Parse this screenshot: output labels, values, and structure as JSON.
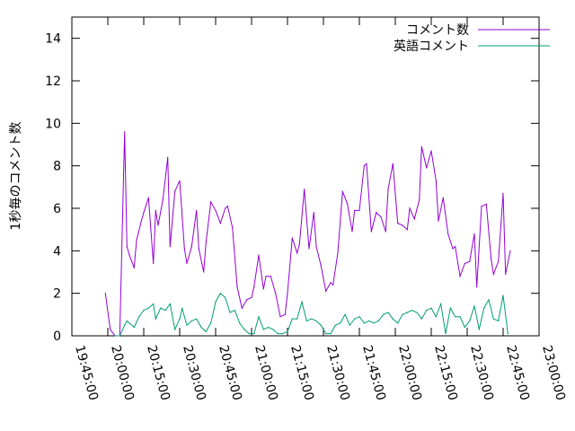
{
  "chart_data": {
    "type": "line",
    "ylabel": "1秒毎のコメント数",
    "xlabel": "",
    "ylim": [
      0,
      15
    ],
    "xlim": [
      "19:45:00",
      "23:00:00"
    ],
    "yticks": [
      "0",
      "2",
      "4",
      "6",
      "8",
      "10",
      "12",
      "14"
    ],
    "xticks": [
      "19:45:00",
      "20:00:00",
      "20:15:00",
      "20:30:00",
      "20:45:00",
      "21:00:00",
      "21:15:00",
      "21:30:00",
      "21:45:00",
      "22:00:00",
      "22:15:00",
      "22:30:00",
      "22:45:00",
      "23:00:00"
    ],
    "legend_position": "top-right",
    "grid": false,
    "series": [
      {
        "name": "コメント数",
        "color": "#9400d3",
        "x": [
          "19:59:00",
          "20:01:00",
          "20:03:00",
          "20:05:00",
          "20:07:00",
          "20:08:00",
          "20:09:00",
          "20:11:00",
          "20:12:00",
          "20:14:00",
          "20:15:00",
          "20:17:00",
          "20:19:00",
          "20:20:00",
          "20:21:00",
          "20:23:00",
          "20:25:00",
          "20:26:00",
          "20:28:00",
          "20:30:00",
          "20:32:00",
          "20:33:00",
          "20:35:00",
          "20:37:00",
          "20:38:00",
          "20:40:00",
          "20:41:00",
          "20:43:00",
          "20:45:00",
          "20:47:00",
          "20:49:00",
          "20:50:00",
          "20:52:00",
          "20:54:00",
          "20:56:00",
          "20:58:00",
          "21:00:00",
          "21:01:00",
          "21:03:00",
          "21:05:00",
          "21:06:00",
          "21:08:00",
          "21:10:00",
          "21:12:00",
          "21:14:00",
          "21:15:00",
          "21:17:00",
          "21:19:00",
          "21:20:00",
          "21:22:00",
          "21:24:00",
          "21:26:00",
          "21:27:00",
          "21:29:00",
          "21:31:00",
          "21:33:00",
          "21:34:00",
          "21:36:00",
          "21:38:00",
          "21:40:00",
          "21:42:00",
          "21:43:00",
          "21:45:00",
          "21:47:00",
          "21:48:00",
          "21:50:00",
          "21:52:00",
          "21:54:00",
          "21:56:00",
          "21:57:00",
          "21:59:00",
          "22:01:00",
          "22:03:00",
          "22:05:00",
          "22:06:00",
          "22:08:00",
          "22:10:00",
          "22:11:00",
          "22:13:00",
          "22:15:00",
          "22:17:00",
          "22:18:00",
          "22:20:00",
          "22:22:00",
          "22:24:00",
          "22:25:00",
          "22:27:00",
          "22:29:00",
          "22:31:00",
          "22:33:00",
          "22:34:00",
          "22:36:00",
          "22:38:00",
          "22:40:00",
          "22:41:00",
          "22:43:00",
          "22:45:00",
          "22:46:00",
          "22:48:00"
        ],
        "values": [
          2.0,
          0.3,
          0.0,
          0.0,
          9.6,
          4.2,
          3.8,
          3.2,
          4.5,
          5.4,
          5.8,
          6.5,
          3.4,
          5.9,
          5.2,
          6.4,
          8.4,
          4.2,
          6.8,
          7.3,
          4.1,
          3.4,
          4.2,
          5.9,
          4.1,
          3.0,
          4.4,
          6.3,
          5.9,
          5.3,
          6.0,
          6.1,
          5.1,
          2.3,
          1.3,
          1.7,
          1.8,
          2.3,
          3.8,
          2.2,
          2.8,
          2.8,
          2.0,
          0.9,
          1.0,
          2.0,
          4.6,
          3.9,
          4.3,
          6.9,
          4.1,
          5.8,
          4.2,
          3.3,
          2.1,
          2.5,
          2.4,
          3.9,
          6.8,
          6.2,
          4.9,
          5.9,
          5.9,
          8.0,
          8.1,
          4.9,
          5.8,
          5.6,
          4.9,
          6.9,
          8.1,
          5.3,
          5.2,
          5.0,
          6.0,
          5.5,
          6.4,
          8.9,
          7.9,
          8.7,
          7.3,
          5.4,
          6.5,
          4.8,
          4.1,
          4.2,
          2.8,
          3.4,
          3.5,
          4.8,
          2.3,
          6.1,
          6.2,
          3.6,
          2.9,
          3.5,
          6.7,
          2.9,
          4.0
        ]
      },
      {
        "name": "英語コメント",
        "color": "#009e73",
        "x": [
          "20:03:00",
          "20:05:00",
          "20:07:00",
          "20:08:00",
          "20:09:00",
          "20:11:00",
          "20:13:00",
          "20:15:00",
          "20:17:00",
          "20:19:00",
          "20:20:00",
          "20:22:00",
          "20:24:00",
          "20:26:00",
          "20:28:00",
          "20:30:00",
          "20:31:00",
          "20:33:00",
          "20:35:00",
          "20:37:00",
          "20:39:00",
          "20:41:00",
          "20:43:00",
          "20:45:00",
          "20:47:00",
          "20:49:00",
          "20:51:00",
          "20:53:00",
          "20:55:00",
          "20:57:00",
          "20:59:00",
          "21:01:00",
          "21:03:00",
          "21:05:00",
          "21:07:00",
          "21:09:00",
          "21:11:00",
          "21:13:00",
          "21:15:00",
          "21:17:00",
          "21:19:00",
          "21:21:00",
          "21:23:00",
          "21:25:00",
          "21:27:00",
          "21:29:00",
          "21:31:00",
          "21:33:00",
          "21:35:00",
          "21:37:00",
          "21:39:00",
          "21:41:00",
          "21:43:00",
          "21:45:00",
          "21:47:00",
          "21:49:00",
          "21:51:00",
          "21:53:00",
          "21:55:00",
          "21:57:00",
          "21:59:00",
          "22:01:00",
          "22:03:00",
          "22:05:00",
          "22:07:00",
          "22:09:00",
          "22:11:00",
          "22:13:00",
          "22:15:00",
          "22:17:00",
          "22:19:00",
          "22:21:00",
          "22:23:00",
          "22:25:00",
          "22:27:00",
          "22:29:00",
          "22:31:00",
          "22:33:00",
          "22:35:00",
          "22:37:00",
          "22:39:00",
          "22:41:00",
          "22:43:00",
          "22:45:00",
          "22:47:00"
        ],
        "values": [
          0.0,
          0.0,
          0.5,
          0.7,
          0.6,
          0.4,
          0.9,
          1.2,
          1.3,
          1.5,
          0.8,
          1.3,
          1.2,
          1.5,
          0.3,
          0.8,
          1.3,
          0.5,
          0.7,
          0.8,
          0.4,
          0.2,
          0.6,
          1.6,
          2.0,
          1.8,
          1.1,
          1.2,
          0.6,
          0.3,
          0.1,
          0.1,
          0.9,
          0.3,
          0.4,
          0.3,
          0.1,
          0.1,
          0.2,
          0.8,
          0.8,
          1.6,
          0.7,
          0.8,
          0.7,
          0.5,
          0.1,
          0.1,
          0.5,
          0.6,
          1.0,
          0.5,
          0.8,
          0.9,
          0.6,
          0.7,
          0.6,
          0.7,
          1.0,
          1.1,
          0.8,
          0.6,
          1.0,
          1.1,
          1.2,
          1.1,
          0.8,
          1.2,
          1.3,
          0.9,
          1.5,
          0.1,
          1.3,
          0.9,
          0.9,
          0.4,
          0.7,
          1.4,
          0.3,
          1.3,
          1.7,
          0.8,
          0.7,
          1.9,
          0.1
        ]
      }
    ]
  }
}
